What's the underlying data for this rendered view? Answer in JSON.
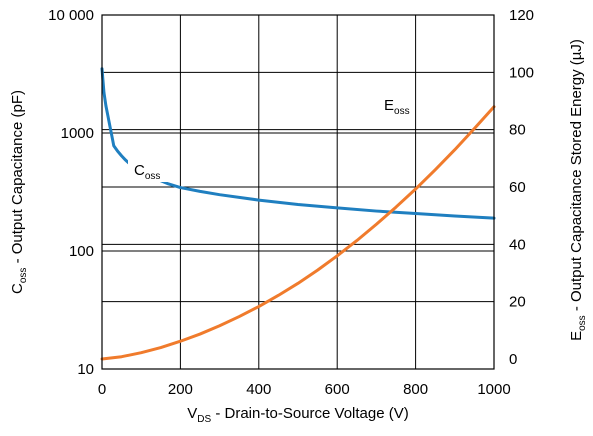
{
  "colors": {
    "coss": "#1f7fc0",
    "eoss": "#f07b2c",
    "grid": "#000000"
  },
  "chart_data": {
    "type": "line",
    "title": "",
    "x_axis": {
      "label_main": "V",
      "label_sub": "DS",
      "label_rest": " - Drain-to-Source Voltage (V)",
      "range": [
        0,
        1000
      ],
      "ticks": [
        0,
        200,
        400,
        600,
        800,
        1000
      ],
      "tick_labels": [
        "0",
        "200",
        "400",
        "600",
        "800",
        "1000"
      ]
    },
    "y_left": {
      "label_main": "C",
      "label_sub": "oss",
      "label_rest": " - Output Capacitance (pF)",
      "scale": "log",
      "range": [
        10,
        10000
      ],
      "ticks": [
        10,
        100,
        1000,
        10000
      ],
      "tick_labels": [
        "10",
        "100",
        "1000",
        "10 000"
      ]
    },
    "y_right": {
      "label_main": "E",
      "label_sub": "oss",
      "label_rest": " - Output Capacitance Stored Energy (µJ)",
      "scale": "linear",
      "ticks": [
        0,
        20,
        40,
        60,
        80,
        100,
        120
      ],
      "tick_labels": [
        "0",
        "20",
        "40",
        "60",
        "80",
        "100",
        "120"
      ]
    },
    "grid": true,
    "series": [
      {
        "name": "Coss",
        "label_main": "C",
        "label_sub": "oss",
        "axis": "left",
        "x": [
          0,
          5,
          10,
          15,
          20,
          25,
          30,
          40,
          50,
          60,
          70,
          80,
          100,
          130,
          170,
          200,
          250,
          300,
          400,
          500,
          600,
          700,
          800,
          900,
          1000
        ],
        "y": [
          3500,
          2200,
          1700,
          1400,
          1150,
          950,
          780,
          700,
          640,
          590,
          550,
          520,
          470,
          420,
          370,
          345,
          320,
          300,
          270,
          248,
          232,
          218,
          208,
          198,
          190
        ]
      },
      {
        "name": "Eoss",
        "label_main": "E",
        "label_sub": "oss",
        "axis": "right",
        "x": [
          0,
          50,
          100,
          150,
          200,
          250,
          300,
          350,
          400,
          450,
          500,
          550,
          600,
          650,
          700,
          750,
          800,
          850,
          900,
          950,
          1000
        ],
        "y": [
          0,
          0.8,
          2.2,
          4.0,
          6.2,
          8.7,
          11.6,
          14.8,
          18.3,
          22.2,
          26.4,
          31.0,
          36.0,
          41.3,
          47.0,
          53.0,
          59.3,
          66.0,
          73.0,
          80.4,
          88.0
        ]
      }
    ]
  }
}
